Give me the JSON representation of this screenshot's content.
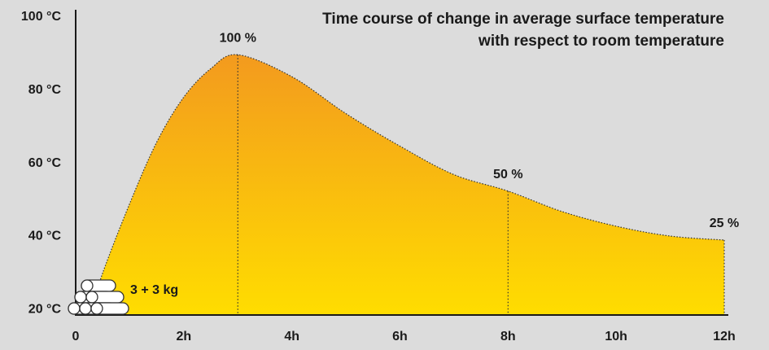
{
  "chart_data": {
    "type": "area",
    "title": "Time course of change in average surface temperature with respect to room temperature",
    "x": [
      0.3,
      0.5,
      1,
      1.5,
      2,
      2.5,
      3,
      4,
      5,
      6,
      7,
      8,
      9,
      10,
      11,
      12
    ],
    "values": [
      20,
      30,
      49,
      65.8,
      78.1,
      85.9,
      89.7,
      83.7,
      73.6,
      64.7,
      56.9,
      52.4,
      46.8,
      42.8,
      40.1,
      39
    ],
    "colors": [
      "#f39a1e",
      "#ffdd00"
    ],
    "xlim": [
      0,
      12
    ],
    "xticks": [
      0,
      {
        "value": 2,
        "label": "2h"
      },
      {
        "value": 4,
        "label": "4h"
      },
      {
        "value": 6,
        "label": "6h"
      },
      {
        "value": 8,
        "label": "8h"
      },
      {
        "value": 10,
        "label": "10h"
      },
      {
        "value": 12,
        "label": "12h"
      }
    ],
    "ylim": [
      18.5,
      102
    ],
    "yticks": [
      {
        "value": 20,
        "label": "20 °C"
      },
      {
        "value": 40,
        "label": "40 °C"
      },
      {
        "value": 60,
        "label": "60 °C"
      },
      {
        "value": 80,
        "label": "80 °C"
      },
      {
        "value": 100,
        "label": "100 °C"
      }
    ],
    "annotations": [
      {
        "label": "100 %",
        "x": 3
      },
      {
        "label": "50 %",
        "x": 8
      },
      {
        "label": "25 %",
        "x": 12
      }
    ],
    "note": "3 + 3 kg"
  }
}
